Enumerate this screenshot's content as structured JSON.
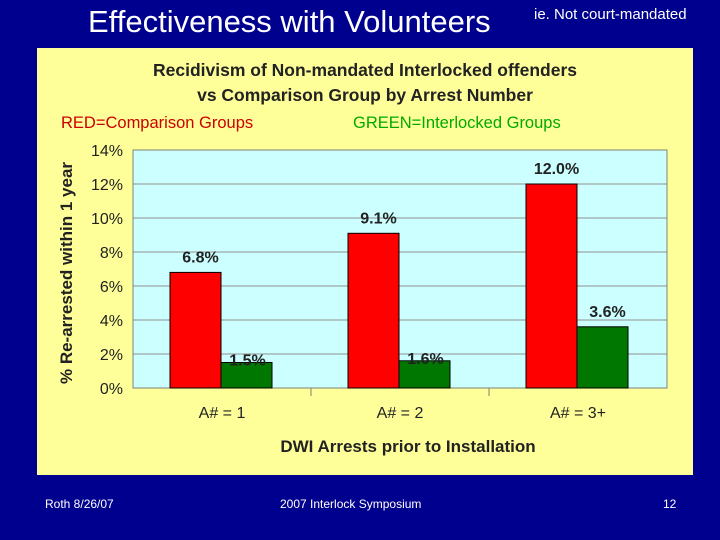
{
  "slide": {
    "title": "Effectiveness with Volunteers",
    "note": "ie. Not court-mandated",
    "footer_left": "Roth 8/26/07",
    "footer_center": "2007 Interlock Symposium",
    "page_number": "12"
  },
  "legend": {
    "red_text": "RED=Comparison Groups",
    "green_text": "GREEN=Interlocked Groups"
  },
  "colors": {
    "slide_bg": "#00008e",
    "panel_bg": "#ffff99",
    "plot_bg": "#ccffff",
    "comparison": "#ff0000",
    "interlocked": "#007700"
  },
  "chart_data": {
    "type": "bar",
    "title_line1": "Recidivism of Non-mandated Interlocked offenders",
    "title_line2": "vs Comparison Group by Arrest Number",
    "xlabel": "DWI Arrests prior to Installation",
    "ylabel": "% Re-arrested within 1 year",
    "categories": [
      "A# = 1",
      "A# = 2",
      "A# = 3+"
    ],
    "ylim": [
      0,
      14
    ],
    "yticks": [
      0,
      2,
      4,
      6,
      8,
      10,
      12,
      14
    ],
    "ytick_labels": [
      "0%",
      "2%",
      "4%",
      "6%",
      "8%",
      "10%",
      "12%",
      "14%"
    ],
    "grid": true,
    "series": [
      {
        "name": "Comparison Groups",
        "color": "#ff0000",
        "values": [
          6.8,
          9.1,
          12.0
        ],
        "labels": [
          "6.8%",
          "9.1%",
          "12.0%"
        ]
      },
      {
        "name": "Interlocked Groups",
        "color": "#007700",
        "values": [
          1.5,
          1.6,
          3.6
        ],
        "labels": [
          "1.5%",
          "1.6%",
          "3.6%"
        ]
      }
    ]
  }
}
